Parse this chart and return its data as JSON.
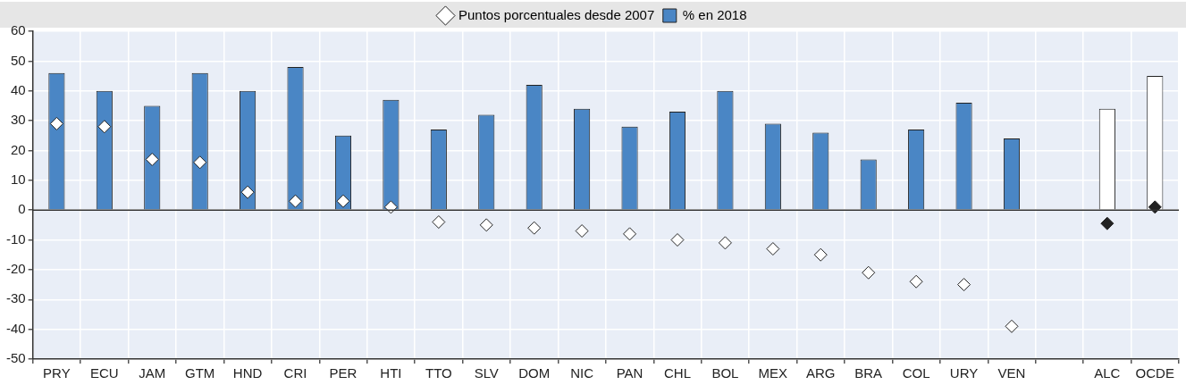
{
  "chart_data": {
    "type": "bar",
    "categories": [
      "PRY",
      "ECU",
      "JAM",
      "GTM",
      "HND",
      "CRI",
      "PER",
      "HTI",
      "TTO",
      "SLV",
      "DOM",
      "NIC",
      "PAN",
      "CHL",
      "BOL",
      "MEX",
      "ARG",
      "BRA",
      "COL",
      "URY",
      "VEN",
      null,
      "ALC",
      "OCDE"
    ],
    "series": [
      {
        "name": "Puntos porcentuales desde 2007",
        "type": "scatter",
        "color": "#ffffff",
        "colors": [
          "#ffffff",
          "#ffffff",
          "#ffffff",
          "#ffffff",
          "#ffffff",
          "#ffffff",
          "#ffffff",
          "#ffffff",
          "#ffffff",
          "#ffffff",
          "#ffffff",
          "#ffffff",
          "#ffffff",
          "#ffffff",
          "#ffffff",
          "#ffffff",
          "#ffffff",
          "#ffffff",
          "#ffffff",
          "#ffffff",
          "#ffffff",
          null,
          "#222222",
          "#222222"
        ],
        "x": [
          "PRY",
          "ECU",
          "JAM",
          "GTM",
          "HND",
          "CRI",
          "PER",
          "HTI",
          "TTO",
          "SLV",
          "DOM",
          "NIC",
          "PAN",
          "CHL",
          "BOL",
          "MEX",
          "ARG",
          "BRA",
          "COL",
          "URY",
          "VEN",
          null,
          "ALC",
          "OCDE"
        ],
        "values": [
          29,
          28,
          17,
          16,
          6,
          3,
          3,
          1,
          -4,
          -5,
          -6,
          -7,
          -8,
          -10,
          -11,
          -13,
          -15,
          -21,
          -24,
          -25,
          -39,
          null,
          -4.5,
          1
        ]
      },
      {
        "name": "% en 2018",
        "color": "#4a86c5",
        "colors": [
          "#4a86c5",
          "#4a86c5",
          "#4a86c5",
          "#4a86c5",
          "#4a86c5",
          "#4a86c5",
          "#4a86c5",
          "#4a86c5",
          "#4a86c5",
          "#4a86c5",
          "#4a86c5",
          "#4a86c5",
          "#4a86c5",
          "#4a86c5",
          "#4a86c5",
          "#4a86c5",
          "#4a86c5",
          "#4a86c5",
          "#4a86c5",
          "#4a86c5",
          "#4a86c5",
          null,
          "#ffffff",
          "#ffffff"
        ],
        "values": [
          46,
          40,
          35,
          46,
          40,
          48,
          25,
          37,
          27,
          32,
          42,
          34,
          28,
          33,
          40,
          29,
          26,
          17,
          27,
          36,
          24,
          null,
          34,
          45
        ]
      }
    ],
    "ylim": [
      -50,
      60
    ],
    "yticks": [
      -50,
      -40,
      -30,
      -20,
      -10,
      0,
      10,
      20,
      30,
      40,
      50,
      60
    ],
    "ref_lines": [
      {
        "axis": "y",
        "value": 0,
        "color": "#333333"
      }
    ],
    "marker": "diamond",
    "grid": true,
    "legend": "top"
  }
}
